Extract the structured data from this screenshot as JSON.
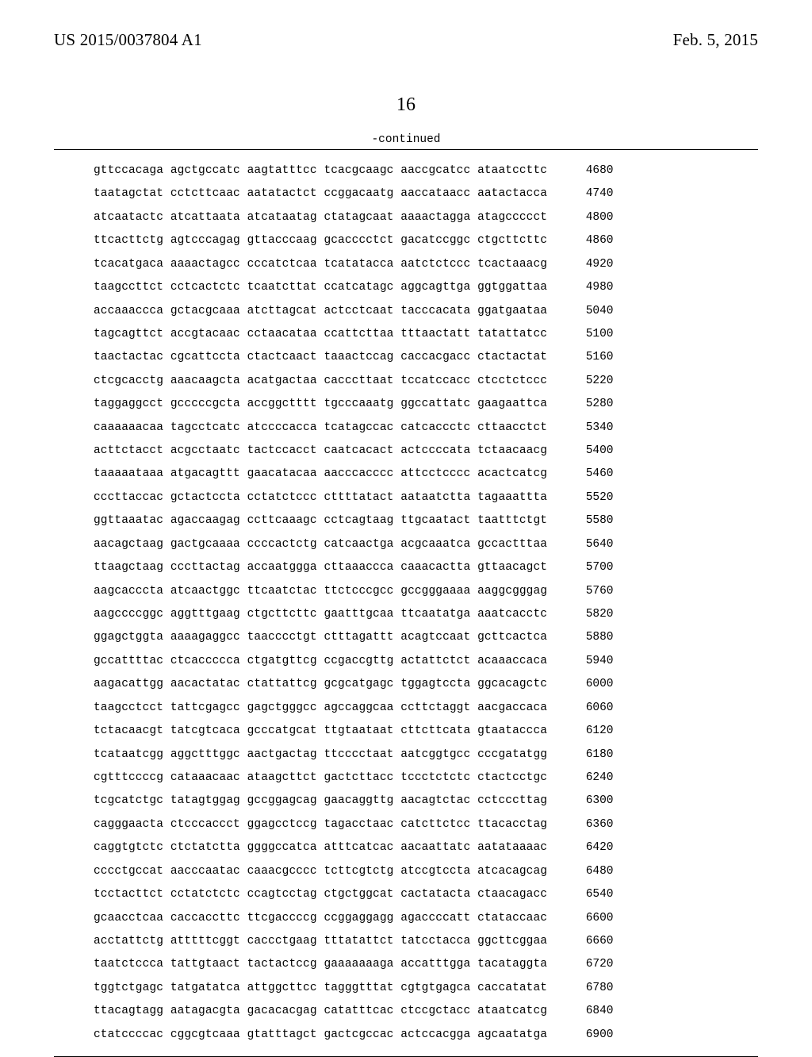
{
  "header": {
    "pub_number": "US 2015/0037804 A1",
    "pub_date": "Feb. 5, 2015"
  },
  "page_number": "16",
  "continued_label": "-continued",
  "sequence": {
    "type": "table",
    "font_family": "Courier New",
    "font_size_pt": 11,
    "line_spacing": 2.03,
    "color": "#000000",
    "background_color": "#ffffff",
    "border_color": "#000000",
    "rows": [
      {
        "groups": [
          "gttccacaga",
          "agctgccatc",
          "aagtatttcc",
          "tcacgcaagc",
          "aaccgcatcc",
          "ataatccttc"
        ],
        "pos": 4680
      },
      {
        "groups": [
          "taatagctat",
          "cctcttcaac",
          "aatatactct",
          "ccggacaatg",
          "aaccataacc",
          "aatactacca"
        ],
        "pos": 4740
      },
      {
        "groups": [
          "atcaatactc",
          "atcattaata",
          "atcataatag",
          "ctatagcaat",
          "aaaactagga",
          "atagccccct"
        ],
        "pos": 4800
      },
      {
        "groups": [
          "ttcacttctg",
          "agtcccagag",
          "gttacccaag",
          "gcacccctct",
          "gacatccggc",
          "ctgcttcttc"
        ],
        "pos": 4860
      },
      {
        "groups": [
          "tcacatgaca",
          "aaaactagcc",
          "cccatctcaa",
          "tcatatacca",
          "aatctctccc",
          "tcactaaacg"
        ],
        "pos": 4920
      },
      {
        "groups": [
          "taagccttct",
          "cctcactctc",
          "tcaatcttat",
          "ccatcatagc",
          "aggcagttga",
          "ggtggattaa"
        ],
        "pos": 4980
      },
      {
        "groups": [
          "accaaaccca",
          "gctacgcaaa",
          "atcttagcat",
          "actcctcaat",
          "tacccacata",
          "ggatgaataa"
        ],
        "pos": 5040
      },
      {
        "groups": [
          "tagcagttct",
          "accgtacaac",
          "cctaacataa",
          "ccattcttaa",
          "tttaactatt",
          "tatattatcc"
        ],
        "pos": 5100
      },
      {
        "groups": [
          "taactactac",
          "cgcattccta",
          "ctactcaact",
          "taaactccag",
          "caccacgacc",
          "ctactactat"
        ],
        "pos": 5160
      },
      {
        "groups": [
          "ctcgcacctg",
          "aaacaagcta",
          "acatgactaa",
          "cacccttaat",
          "tccatccacc",
          "ctcctctccc"
        ],
        "pos": 5220
      },
      {
        "groups": [
          "taggaggcct",
          "gcccccgcta",
          "accggctttt",
          "tgcccaaatg",
          "ggccattatc",
          "gaagaattca"
        ],
        "pos": 5280
      },
      {
        "groups": [
          "caaaaaacaa",
          "tagcctcatc",
          "atccccacca",
          "tcatagccac",
          "catcaccctc",
          "cttaacctct"
        ],
        "pos": 5340
      },
      {
        "groups": [
          "acttctacct",
          "acgcctaatc",
          "tactccacct",
          "caatcacact",
          "actccccata",
          "tctaacaacg"
        ],
        "pos": 5400
      },
      {
        "groups": [
          "taaaaataaa",
          "atgacagttt",
          "gaacatacaa",
          "aacccacccc",
          "attcctcccc",
          "acactcatcg"
        ],
        "pos": 5460
      },
      {
        "groups": [
          "cccttaccac",
          "gctactccta",
          "cctatctccc",
          "cttttatact",
          "aataatctta",
          "tagaaattta"
        ],
        "pos": 5520
      },
      {
        "groups": [
          "ggttaaatac",
          "agaccaagag",
          "ccttcaaagc",
          "cctcagtaag",
          "ttgcaatact",
          "taatttctgt"
        ],
        "pos": 5580
      },
      {
        "groups": [
          "aacagctaag",
          "gactgcaaaa",
          "ccccactctg",
          "catcaactga",
          "acgcaaatca",
          "gccactttaa"
        ],
        "pos": 5640
      },
      {
        "groups": [
          "ttaagctaag",
          "cccttactag",
          "accaatggga",
          "cttaaaccca",
          "caaacactta",
          "gttaacagct"
        ],
        "pos": 5700
      },
      {
        "groups": [
          "aagcacccta",
          "atcaactggc",
          "ttcaatctac",
          "ttctcccgcc",
          "gccgggaaaa",
          "aaggcgggag"
        ],
        "pos": 5760
      },
      {
        "groups": [
          "aagccccggc",
          "aggtttgaag",
          "ctgcttcttc",
          "gaatttgcaa",
          "ttcaatatga",
          "aaatcacctc"
        ],
        "pos": 5820
      },
      {
        "groups": [
          "ggagctggta",
          "aaaagaggcc",
          "taacccctgt",
          "ctttagattt",
          "acagtccaat",
          "gcttcactca"
        ],
        "pos": 5880
      },
      {
        "groups": [
          "gccattttac",
          "ctcaccccca",
          "ctgatgttcg",
          "ccgaccgttg",
          "actattctct",
          "acaaaccaca"
        ],
        "pos": 5940
      },
      {
        "groups": [
          "aagacattgg",
          "aacactatac",
          "ctattattcg",
          "gcgcatgagc",
          "tggagtccta",
          "ggcacagctc"
        ],
        "pos": 6000
      },
      {
        "groups": [
          "taagcctcct",
          "tattcgagcc",
          "gagctgggcc",
          "agccaggcaa",
          "ccttctaggt",
          "aacgaccaca"
        ],
        "pos": 6060
      },
      {
        "groups": [
          "tctacaacgt",
          "tatcgtcaca",
          "gcccatgcat",
          "ttgtaataat",
          "cttcttcata",
          "gtaataccca"
        ],
        "pos": 6120
      },
      {
        "groups": [
          "tcataatcgg",
          "aggctttggc",
          "aactgactag",
          "ttcccctaat",
          "aatcggtgcc",
          "cccgatatgg"
        ],
        "pos": 6180
      },
      {
        "groups": [
          "cgtttccccg",
          "cataaacaac",
          "ataagcttct",
          "gactcttacc",
          "tccctctctc",
          "ctactcctgc"
        ],
        "pos": 6240
      },
      {
        "groups": [
          "tcgcatctgc",
          "tatagtggag",
          "gccggagcag",
          "gaacaggttg",
          "aacagtctac",
          "cctcccttag"
        ],
        "pos": 6300
      },
      {
        "groups": [
          "cagggaacta",
          "ctcccaccct",
          "ggagcctccg",
          "tagacctaac",
          "catcttctcc",
          "ttacacctag"
        ],
        "pos": 6360
      },
      {
        "groups": [
          "caggtgtctc",
          "ctctatctta",
          "ggggccatca",
          "atttcatcac",
          "aacaattatc",
          "aatataaaac"
        ],
        "pos": 6420
      },
      {
        "groups": [
          "cccctgccat",
          "aacccaatac",
          "caaacgcccc",
          "tcttcgtctg",
          "atccgtccta",
          "atcacagcag"
        ],
        "pos": 6480
      },
      {
        "groups": [
          "tcctacttct",
          "cctatctctc",
          "ccagtcctag",
          "ctgctggcat",
          "cactatacta",
          "ctaacagacc"
        ],
        "pos": 6540
      },
      {
        "groups": [
          "gcaacctcaa",
          "caccaccttc",
          "ttcgaccccg",
          "ccggaggagg",
          "agaccccatt",
          "ctataccaac"
        ],
        "pos": 6600
      },
      {
        "groups": [
          "acctattctg",
          "atttttcggt",
          "caccctgaag",
          "tttatattct",
          "tatcctacca",
          "ggcttcggaa"
        ],
        "pos": 6660
      },
      {
        "groups": [
          "taatctccca",
          "tattgtaact",
          "tactactccg",
          "gaaaaaaaga",
          "accatttgga",
          "tacataggta"
        ],
        "pos": 6720
      },
      {
        "groups": [
          "tggtctgagc",
          "tatgatatca",
          "attggcttcc",
          "tagggtttat",
          "cgtgtgagca",
          "caccatatat"
        ],
        "pos": 6780
      },
      {
        "groups": [
          "ttacagtagg",
          "aatagacgta",
          "gacacacgag",
          "catatttcac",
          "ctccgctacc",
          "ataatcatcg"
        ],
        "pos": 6840
      },
      {
        "groups": [
          "ctatccccac",
          "cggcgtcaaa",
          "gtatttagct",
          "gactcgccac",
          "actccacgga",
          "agcaatatga"
        ],
        "pos": 6900
      }
    ]
  }
}
